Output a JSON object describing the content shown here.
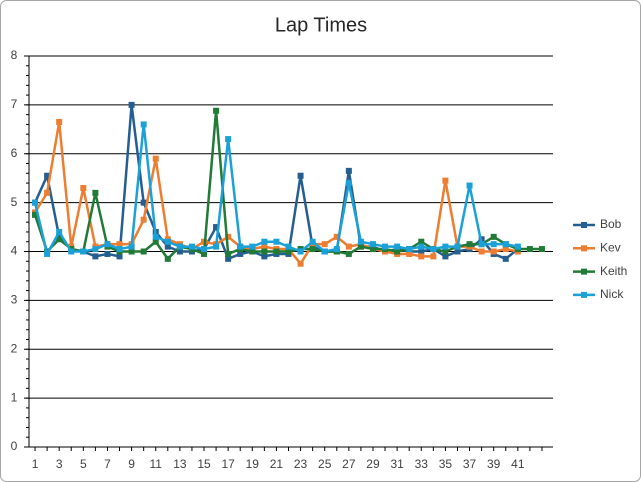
{
  "chart_data": {
    "type": "line",
    "title": "Lap Times",
    "categories": [
      1,
      null,
      3,
      null,
      5,
      null,
      7,
      null,
      9,
      null,
      11,
      null,
      13,
      null,
      15,
      null,
      17,
      null,
      19,
      null,
      21,
      null,
      23,
      null,
      25,
      null,
      27,
      null,
      29,
      null,
      31,
      null,
      33,
      null,
      35,
      null,
      37,
      null,
      39,
      null,
      41,
      null,
      null
    ],
    "ylim": [
      0,
      8
    ],
    "yticks": [
      0,
      1,
      2,
      3,
      4,
      5,
      6,
      7,
      8
    ],
    "grid": true,
    "legend": "right",
    "series": [
      {
        "name": "Bob",
        "color": "#255e91",
        "values": [
          5.0,
          5.55,
          4.3,
          4.05,
          4.0,
          3.9,
          3.95,
          3.9,
          7.0,
          5.0,
          4.4,
          4.1,
          4.0,
          4.0,
          4.05,
          4.5,
          3.85,
          3.95,
          4.0,
          3.9,
          3.95,
          3.95,
          5.55,
          4.1,
          4.0,
          4.0,
          5.65,
          4.1,
          4.1,
          4.0,
          4.05,
          4.0,
          4.0,
          4.05,
          3.9,
          4.0,
          4.05,
          4.25,
          3.95,
          3.85,
          4.05,
          null,
          null
        ]
      },
      {
        "name": "Kev",
        "color": "#ed7d31",
        "values": [
          4.8,
          5.2,
          6.65,
          4.1,
          5.3,
          4.1,
          4.15,
          4.15,
          4.15,
          4.65,
          5.9,
          4.25,
          4.15,
          4.05,
          4.2,
          4.15,
          4.3,
          4.1,
          4.05,
          4.1,
          4.05,
          4.05,
          3.75,
          4.15,
          4.15,
          4.3,
          4.1,
          4.15,
          4.05,
          4.0,
          3.95,
          3.95,
          3.9,
          3.9,
          5.45,
          4.1,
          4.1,
          4.0,
          4.0,
          4.05,
          4.0,
          null,
          null
        ]
      },
      {
        "name": "Keith",
        "color": "#217a35",
        "values": [
          4.75,
          4.0,
          4.25,
          4.05,
          4.0,
          5.2,
          4.1,
          4.0,
          4.0,
          4.0,
          4.2,
          3.85,
          4.1,
          4.05,
          3.95,
          6.88,
          3.95,
          4.05,
          4.0,
          4.0,
          4.0,
          4.0,
          4.05,
          4.05,
          4.0,
          4.0,
          3.95,
          4.1,
          4.05,
          4.05,
          4.0,
          4.05,
          4.2,
          4.05,
          4.0,
          4.1,
          4.15,
          4.15,
          4.3,
          4.15,
          4.05,
          4.05,
          4.05
        ]
      },
      {
        "name": "Nick",
        "color": "#1ba1d8",
        "values": [
          5.0,
          3.95,
          4.4,
          4.0,
          4.0,
          4.05,
          4.15,
          4.05,
          4.1,
          6.6,
          4.3,
          4.2,
          4.1,
          4.1,
          4.05,
          4.1,
          6.3,
          4.1,
          4.1,
          4.2,
          4.2,
          4.1,
          4.0,
          4.2,
          4.0,
          4.05,
          5.4,
          4.2,
          4.15,
          4.1,
          4.1,
          4.05,
          4.1,
          4.05,
          4.1,
          4.1,
          5.35,
          4.15,
          4.15,
          4.15,
          4.1,
          null,
          null
        ]
      }
    ]
  }
}
